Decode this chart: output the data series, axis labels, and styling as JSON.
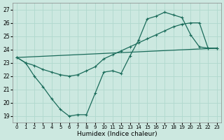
{
  "xlabel": "Humidex (Indice chaleur)",
  "xlim": [
    -0.5,
    23.5
  ],
  "ylim": [
    18.5,
    27.5
  ],
  "xticks": [
    0,
    1,
    2,
    3,
    4,
    5,
    6,
    7,
    8,
    9,
    10,
    11,
    12,
    13,
    14,
    15,
    16,
    17,
    18,
    19,
    20,
    21,
    22,
    23
  ],
  "yticks": [
    19,
    20,
    21,
    22,
    23,
    24,
    25,
    26,
    27
  ],
  "bg_color": "#cce8e0",
  "line_color": "#1a6b5a",
  "grid_color": "#b0d8ce",
  "line1_x": [
    0,
    1,
    2,
    3,
    4,
    5,
    6,
    7,
    8,
    9,
    10,
    11,
    12,
    13,
    14,
    15,
    16,
    17,
    18,
    19,
    20,
    21,
    22,
    23
  ],
  "line1_y": [
    23.4,
    23.0,
    22.8,
    22.5,
    22.3,
    22.1,
    22.0,
    22.1,
    22.4,
    22.7,
    23.3,
    23.6,
    23.9,
    24.2,
    24.5,
    24.8,
    25.1,
    25.4,
    25.7,
    25.9,
    26.0,
    26.0,
    24.1,
    24.1
  ],
  "line2_x": [
    0,
    1,
    2,
    3,
    4,
    5,
    6,
    7,
    8,
    9,
    10,
    11,
    12,
    13,
    14,
    15,
    16,
    17,
    18,
    19,
    20,
    21,
    22,
    23
  ],
  "line2_y": [
    23.4,
    23.0,
    22.0,
    21.2,
    20.3,
    19.5,
    19.0,
    19.1,
    19.1,
    20.7,
    22.3,
    22.4,
    22.2,
    23.5,
    24.7,
    26.3,
    26.5,
    26.8,
    26.6,
    26.4,
    25.1,
    24.2,
    24.1,
    24.1
  ],
  "line3_x": [
    0,
    23
  ],
  "line3_y": [
    23.4,
    24.1
  ]
}
